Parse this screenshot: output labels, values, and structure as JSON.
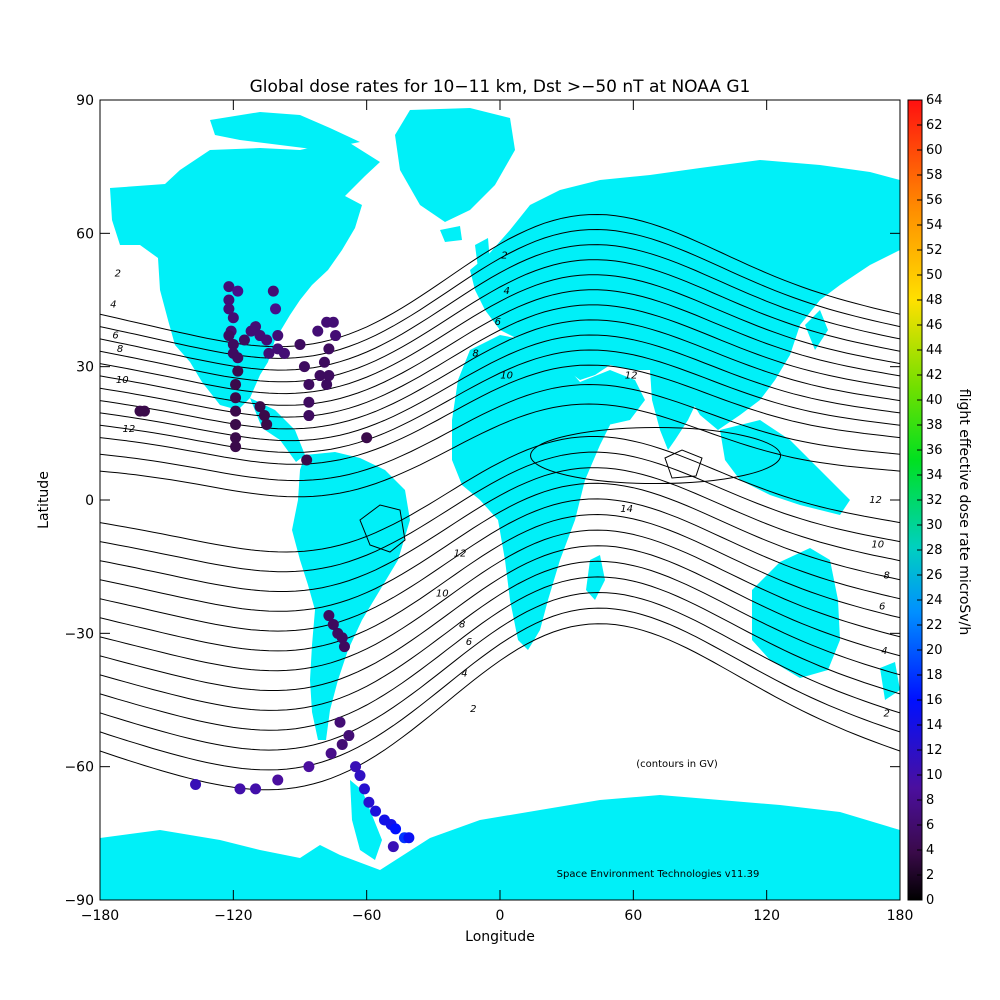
{
  "title": "Global dose rates for 10−11 km, Dst >−50 nT at NOAA G1",
  "xlabel": "Longitude",
  "ylabel": "Latitude",
  "xticks": [
    "−180",
    "−120",
    "−60",
    "0",
    "60",
    "120",
    "180"
  ],
  "yticks": [
    "90",
    "60",
    "30",
    "0",
    "−30",
    "−60",
    "−90"
  ],
  "colorbar": {
    "label": "flight effective dose rate microSv/h",
    "ticks": [
      "0",
      "2",
      "4",
      "6",
      "8",
      "10",
      "12",
      "14",
      "16",
      "18",
      "20",
      "22",
      "24",
      "26",
      "28",
      "30",
      "32",
      "34",
      "36",
      "38",
      "40",
      "42",
      "44",
      "46",
      "48",
      "50",
      "52",
      "54",
      "56",
      "58",
      "60",
      "62",
      "64"
    ]
  },
  "contour_note": "(contours in GV)",
  "credit": "Space Environment Technologies v11.39",
  "colors": {
    "land": "#00f0f8",
    "ocean": "#ffffff",
    "contour": "#000000"
  },
  "contour_labels": [
    {
      "text": "2",
      "lon": -172,
      "lat": 51
    },
    {
      "text": "4",
      "lon": -174,
      "lat": 44
    },
    {
      "text": "6",
      "lon": -173,
      "lat": 37
    },
    {
      "text": "8",
      "lon": -171,
      "lat": 34
    },
    {
      "text": "10",
      "lon": -170,
      "lat": 27
    },
    {
      "text": "12",
      "lon": -167,
      "lat": 16
    },
    {
      "text": "2",
      "lon": 2,
      "lat": 55
    },
    {
      "text": "4",
      "lon": 3,
      "lat": 47
    },
    {
      "text": "6",
      "lon": -1,
      "lat": 40
    },
    {
      "text": "8",
      "lon": -11,
      "lat": 33
    },
    {
      "text": "10",
      "lon": 3,
      "lat": 28
    },
    {
      "text": "12",
      "lon": 59,
      "lat": 28
    },
    {
      "text": "14",
      "lon": 57,
      "lat": -2
    },
    {
      "text": "12",
      "lon": -18,
      "lat": -12
    },
    {
      "text": "10",
      "lon": -26,
      "lat": -21
    },
    {
      "text": "8",
      "lon": -17,
      "lat": -28
    },
    {
      "text": "6",
      "lon": -14,
      "lat": -32
    },
    {
      "text": "4",
      "lon": -16,
      "lat": -39
    },
    {
      "text": "2",
      "lon": -12,
      "lat": -47
    },
    {
      "text": "12",
      "lon": 169,
      "lat": 0
    },
    {
      "text": "10",
      "lon": 170,
      "lat": -10
    },
    {
      "text": "8",
      "lon": 174,
      "lat": -17
    },
    {
      "text": "6",
      "lon": 172,
      "lat": -24
    },
    {
      "text": "4",
      "lon": 173,
      "lat": -34
    },
    {
      "text": "2",
      "lon": 174,
      "lat": -48
    }
  ],
  "flight_points": [
    {
      "lon": -122,
      "lat": 48,
      "v": 6
    },
    {
      "lon": -118,
      "lat": 47,
      "v": 7
    },
    {
      "lon": -122,
      "lat": 45,
      "v": 6
    },
    {
      "lon": -122,
      "lat": 43,
      "v": 6
    },
    {
      "lon": -120,
      "lat": 41,
      "v": 6
    },
    {
      "lon": -121,
      "lat": 38,
      "v": 6
    },
    {
      "lon": -122,
      "lat": 37,
      "v": 5
    },
    {
      "lon": -120,
      "lat": 35,
      "v": 5
    },
    {
      "lon": -120,
      "lat": 33,
      "v": 5
    },
    {
      "lon": -118,
      "lat": 32,
      "v": 5
    },
    {
      "lon": -118,
      "lat": 29,
      "v": 4
    },
    {
      "lon": -119,
      "lat": 26,
      "v": 4
    },
    {
      "lon": -119,
      "lat": 23,
      "v": 4
    },
    {
      "lon": -119,
      "lat": 20,
      "v": 4
    },
    {
      "lon": -119,
      "lat": 17,
      "v": 4
    },
    {
      "lon": -119,
      "lat": 14,
      "v": 4
    },
    {
      "lon": -119,
      "lat": 12,
      "v": 4
    },
    {
      "lon": -115,
      "lat": 36,
      "v": 5
    },
    {
      "lon": -112,
      "lat": 38,
      "v": 6
    },
    {
      "lon": -110,
      "lat": 39,
      "v": 6
    },
    {
      "lon": -108,
      "lat": 37,
      "v": 6
    },
    {
      "lon": -105,
      "lat": 36,
      "v": 6
    },
    {
      "lon": -100,
      "lat": 37,
      "v": 6
    },
    {
      "lon": -104,
      "lat": 33,
      "v": 6
    },
    {
      "lon": -100,
      "lat": 34,
      "v": 6
    },
    {
      "lon": -97,
      "lat": 33,
      "v": 6
    },
    {
      "lon": -108,
      "lat": 21,
      "v": 4
    },
    {
      "lon": -106,
      "lat": 19,
      "v": 4
    },
    {
      "lon": -105,
      "lat": 17,
      "v": 4
    },
    {
      "lon": -87,
      "lat": 9,
      "v": 4
    },
    {
      "lon": -102,
      "lat": 47,
      "v": 6
    },
    {
      "lon": -101,
      "lat": 43,
      "v": 7
    },
    {
      "lon": -90,
      "lat": 35,
      "v": 5
    },
    {
      "lon": -88,
      "lat": 30,
      "v": 5
    },
    {
      "lon": -86,
      "lat": 26,
      "v": 5
    },
    {
      "lon": -86,
      "lat": 22,
      "v": 5
    },
    {
      "lon": -86,
      "lat": 19,
      "v": 5
    },
    {
      "lon": -82,
      "lat": 38,
      "v": 6
    },
    {
      "lon": -78,
      "lat": 40,
      "v": 6
    },
    {
      "lon": -75,
      "lat": 40,
      "v": 6
    },
    {
      "lon": -74,
      "lat": 37,
      "v": 6
    },
    {
      "lon": -77,
      "lat": 34,
      "v": 5
    },
    {
      "lon": -79,
      "lat": 31,
      "v": 5
    },
    {
      "lon": -81,
      "lat": 28,
      "v": 5
    },
    {
      "lon": -78,
      "lat": 26,
      "v": 5
    },
    {
      "lon": -77,
      "lat": 28,
      "v": 5
    },
    {
      "lon": -160,
      "lat": 20,
      "v": 4
    },
    {
      "lon": -162,
      "lat": 20,
      "v": 4
    },
    {
      "lon": -60,
      "lat": 14,
      "v": 4
    },
    {
      "lon": -77,
      "lat": -26,
      "v": 5
    },
    {
      "lon": -75,
      "lat": -28,
      "v": 5
    },
    {
      "lon": -73,
      "lat": -30,
      "v": 5
    },
    {
      "lon": -71,
      "lat": -31,
      "v": 5
    },
    {
      "lon": -70,
      "lat": -33,
      "v": 5
    },
    {
      "lon": -72,
      "lat": -50,
      "v": 6
    },
    {
      "lon": -68,
      "lat": -53,
      "v": 6
    },
    {
      "lon": -71,
      "lat": -55,
      "v": 6
    },
    {
      "lon": -76,
      "lat": -57,
      "v": 7
    },
    {
      "lon": -86,
      "lat": -60,
      "v": 8
    },
    {
      "lon": -100,
      "lat": -63,
      "v": 8
    },
    {
      "lon": -110,
      "lat": -65,
      "v": 9
    },
    {
      "lon": -117,
      "lat": -65,
      "v": 9
    },
    {
      "lon": -137,
      "lat": -64,
      "v": 10
    },
    {
      "lon": -65,
      "lat": -60,
      "v": 10
    },
    {
      "lon": -63,
      "lat": -62,
      "v": 11
    },
    {
      "lon": -61,
      "lat": -65,
      "v": 12
    },
    {
      "lon": -59,
      "lat": -68,
      "v": 12
    },
    {
      "lon": -56,
      "lat": -70,
      "v": 13
    },
    {
      "lon": -52,
      "lat": -72,
      "v": 14
    },
    {
      "lon": -49,
      "lat": -73,
      "v": 14
    },
    {
      "lon": -47,
      "lat": -74,
      "v": 16
    },
    {
      "lon": -43,
      "lat": -76,
      "v": 18
    },
    {
      "lon": -41,
      "lat": -76,
      "v": 15
    },
    {
      "lon": -48,
      "lat": -78,
      "v": 10
    }
  ]
}
